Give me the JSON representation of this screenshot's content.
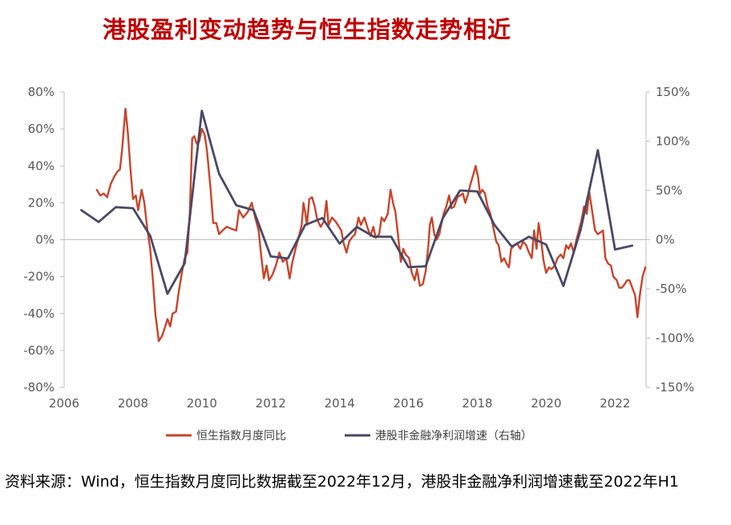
{
  "title": "港股盈利变动趋势与恒生指数走势相近",
  "source_note": "资料来源：Wind，恒生指数月度同比数据截至2022年12月，港股非金融净利润增速截至2022年H1",
  "colors": {
    "series1": "#c8442a",
    "series2": "#4a4866",
    "axis": "#bfbfbf",
    "title": "#c00000"
  },
  "chart_data": {
    "type": "line",
    "x_ticks": [
      "2006",
      "2008",
      "2010",
      "2012",
      "2014",
      "2016",
      "2018",
      "2020",
      "2022"
    ],
    "xlim": [
      2006,
      2022.9
    ],
    "y_left_ticks": [
      "80%",
      "60%",
      "40%",
      "20%",
      "0%",
      "-20%",
      "-40%",
      "-60%",
      "-80%"
    ],
    "y_left_lim": [
      -80,
      80
    ],
    "y_right_ticks": [
      "150%",
      "100%",
      "50%",
      "0%",
      "-50%",
      "-100%",
      "-150%"
    ],
    "y_right_lim": [
      -150,
      150
    ],
    "legend_position": "bottom",
    "series": [
      {
        "name": "恒生指数月度同比",
        "axis": "left",
        "color": "#c8442a",
        "points": [
          [
            2006.95,
            27
          ],
          [
            2007.05,
            24
          ],
          [
            2007.15,
            25
          ],
          [
            2007.25,
            23
          ],
          [
            2007.35,
            30
          ],
          [
            2007.45,
            34
          ],
          [
            2007.55,
            37
          ],
          [
            2007.62,
            38
          ],
          [
            2007.68,
            48
          ],
          [
            2007.78,
            71
          ],
          [
            2007.85,
            58
          ],
          [
            2007.92,
            40
          ],
          [
            2008.0,
            22
          ],
          [
            2008.08,
            24
          ],
          [
            2008.15,
            16
          ],
          [
            2008.25,
            27
          ],
          [
            2008.33,
            20
          ],
          [
            2008.42,
            5
          ],
          [
            2008.5,
            -5
          ],
          [
            2008.58,
            -22
          ],
          [
            2008.65,
            -40
          ],
          [
            2008.75,
            -55
          ],
          [
            2008.85,
            -52
          ],
          [
            2008.92,
            -48
          ],
          [
            2009.0,
            -43
          ],
          [
            2009.08,
            -47
          ],
          [
            2009.15,
            -40
          ],
          [
            2009.25,
            -39
          ],
          [
            2009.33,
            -28
          ],
          [
            2009.42,
            -18
          ],
          [
            2009.5,
            -10
          ],
          [
            2009.58,
            -7
          ],
          [
            2009.65,
            15
          ],
          [
            2009.72,
            55
          ],
          [
            2009.78,
            56
          ],
          [
            2009.85,
            52
          ],
          [
            2009.92,
            53
          ],
          [
            2010.0,
            60
          ],
          [
            2010.08,
            57
          ],
          [
            2010.15,
            48
          ],
          [
            2010.25,
            28
          ],
          [
            2010.33,
            9
          ],
          [
            2010.42,
            9
          ],
          [
            2010.5,
            3
          ],
          [
            2010.6,
            5
          ],
          [
            2010.72,
            7
          ],
          [
            2010.85,
            6
          ],
          [
            2011.0,
            5
          ],
          [
            2011.08,
            16
          ],
          [
            2011.2,
            12
          ],
          [
            2011.33,
            15
          ],
          [
            2011.45,
            20
          ],
          [
            2011.55,
            12
          ],
          [
            2011.65,
            5
          ],
          [
            2011.72,
            -8
          ],
          [
            2011.8,
            -21
          ],
          [
            2011.88,
            -14
          ],
          [
            2011.95,
            -22
          ],
          [
            2012.05,
            -19
          ],
          [
            2012.15,
            -14
          ],
          [
            2012.25,
            -7
          ],
          [
            2012.35,
            -12
          ],
          [
            2012.45,
            -10
          ],
          [
            2012.55,
            -21
          ],
          [
            2012.62,
            -13
          ],
          [
            2012.72,
            -5
          ],
          [
            2012.82,
            2
          ],
          [
            2012.9,
            8
          ],
          [
            2012.95,
            20
          ],
          [
            2013.0,
            15
          ],
          [
            2013.05,
            8
          ],
          [
            2013.12,
            22
          ],
          [
            2013.2,
            23
          ],
          [
            2013.28,
            18
          ],
          [
            2013.35,
            11
          ],
          [
            2013.45,
            7
          ],
          [
            2013.55,
            10
          ],
          [
            2013.62,
            21
          ],
          [
            2013.68,
            8
          ],
          [
            2013.78,
            12
          ],
          [
            2013.88,
            10
          ],
          [
            2013.95,
            8
          ],
          [
            2014.05,
            5
          ],
          [
            2014.12,
            -2
          ],
          [
            2014.2,
            -7
          ],
          [
            2014.28,
            -1
          ],
          [
            2014.35,
            1
          ],
          [
            2014.45,
            3
          ],
          [
            2014.55,
            12
          ],
          [
            2014.62,
            8
          ],
          [
            2014.72,
            12
          ],
          [
            2014.82,
            6
          ],
          [
            2014.9,
            2
          ],
          [
            2014.98,
            7
          ],
          [
            2015.05,
            1
          ],
          [
            2015.15,
            3
          ],
          [
            2015.22,
            12
          ],
          [
            2015.3,
            10
          ],
          [
            2015.4,
            14
          ],
          [
            2015.48,
            27
          ],
          [
            2015.55,
            20
          ],
          [
            2015.62,
            15
          ],
          [
            2015.7,
            2
          ],
          [
            2015.78,
            -12
          ],
          [
            2015.85,
            -5
          ],
          [
            2015.92,
            -8
          ],
          [
            2016.02,
            -10
          ],
          [
            2016.1,
            -18
          ],
          [
            2016.18,
            -22
          ],
          [
            2016.25,
            -16
          ],
          [
            2016.33,
            -25
          ],
          [
            2016.42,
            -24
          ],
          [
            2016.5,
            -17
          ],
          [
            2016.58,
            -3
          ],
          [
            2016.62,
            8
          ],
          [
            2016.68,
            12
          ],
          [
            2016.75,
            3
          ],
          [
            2016.82,
            0
          ],
          [
            2016.9,
            3
          ],
          [
            2016.95,
            8
          ],
          [
            2017.02,
            14
          ],
          [
            2017.1,
            18
          ],
          [
            2017.18,
            24
          ],
          [
            2017.25,
            17
          ],
          [
            2017.33,
            18
          ],
          [
            2017.42,
            23
          ],
          [
            2017.5,
            24
          ],
          [
            2017.58,
            25
          ],
          [
            2017.65,
            20
          ],
          [
            2017.72,
            24
          ],
          [
            2017.8,
            30
          ],
          [
            2017.88,
            35
          ],
          [
            2017.95,
            40
          ],
          [
            2018.02,
            34
          ],
          [
            2018.08,
            25
          ],
          [
            2018.15,
            27
          ],
          [
            2018.22,
            25
          ],
          [
            2018.3,
            18
          ],
          [
            2018.38,
            14
          ],
          [
            2018.45,
            8
          ],
          [
            2018.55,
            -1
          ],
          [
            2018.62,
            -3
          ],
          [
            2018.7,
            -12
          ],
          [
            2018.78,
            -10
          ],
          [
            2018.85,
            -13
          ],
          [
            2018.92,
            -15
          ],
          [
            2018.98,
            -5
          ],
          [
            2019.08,
            -3
          ],
          [
            2019.15,
            -2
          ],
          [
            2019.25,
            -5
          ],
          [
            2019.33,
            -1
          ],
          [
            2019.42,
            -3
          ],
          [
            2019.5,
            -7
          ],
          [
            2019.58,
            -10
          ],
          [
            2019.65,
            5
          ],
          [
            2019.72,
            -5
          ],
          [
            2019.78,
            9
          ],
          [
            2019.85,
            0
          ],
          [
            2019.92,
            -11
          ],
          [
            2020.0,
            -18
          ],
          [
            2020.08,
            -15
          ],
          [
            2020.15,
            -16
          ],
          [
            2020.25,
            -14
          ],
          [
            2020.33,
            -10
          ],
          [
            2020.42,
            -8
          ],
          [
            2020.5,
            -10
          ],
          [
            2020.58,
            -3
          ],
          [
            2020.65,
            -5
          ],
          [
            2020.72,
            -2
          ],
          [
            2020.8,
            -7
          ],
          [
            2020.88,
            0
          ],
          [
            2020.95,
            5
          ],
          [
            2021.02,
            10
          ],
          [
            2021.1,
            18
          ],
          [
            2021.18,
            14
          ],
          [
            2021.25,
            26
          ],
          [
            2021.33,
            16
          ],
          [
            2021.42,
            5
          ],
          [
            2021.5,
            3
          ],
          [
            2021.58,
            4
          ],
          [
            2021.65,
            5
          ],
          [
            2021.72,
            -10
          ],
          [
            2021.8,
            -13
          ],
          [
            2021.88,
            -14
          ],
          [
            2021.95,
            -20
          ],
          [
            2022.05,
            -22
          ],
          [
            2022.12,
            -26
          ],
          [
            2022.2,
            -26
          ],
          [
            2022.28,
            -24
          ],
          [
            2022.35,
            -22
          ],
          [
            2022.42,
            -22
          ],
          [
            2022.5,
            -26
          ],
          [
            2022.58,
            -30
          ],
          [
            2022.65,
            -42
          ],
          [
            2022.72,
            -30
          ],
          [
            2022.8,
            -20
          ],
          [
            2022.88,
            -15
          ]
        ]
      },
      {
        "name": "港股非金融净利润增速（右轴）",
        "axis": "right",
        "color": "#4a4866",
        "points": [
          [
            2006.5,
            30
          ],
          [
            2007.0,
            18
          ],
          [
            2007.5,
            33
          ],
          [
            2008.0,
            32
          ],
          [
            2008.5,
            4
          ],
          [
            2009.0,
            -55
          ],
          [
            2009.5,
            -24
          ],
          [
            2010.0,
            131
          ],
          [
            2010.5,
            67
          ],
          [
            2011.0,
            35
          ],
          [
            2011.5,
            30
          ],
          [
            2012.0,
            -17
          ],
          [
            2012.5,
            -19
          ],
          [
            2013.0,
            15
          ],
          [
            2013.5,
            22
          ],
          [
            2014.0,
            -4
          ],
          [
            2014.5,
            13
          ],
          [
            2015.0,
            3
          ],
          [
            2015.5,
            3
          ],
          [
            2016.0,
            -28
          ],
          [
            2016.5,
            -27
          ],
          [
            2017.0,
            22
          ],
          [
            2017.5,
            50
          ],
          [
            2018.0,
            49
          ],
          [
            2018.5,
            15
          ],
          [
            2019.0,
            -7
          ],
          [
            2019.5,
            3
          ],
          [
            2020.0,
            -5
          ],
          [
            2020.5,
            -47
          ],
          [
            2021.0,
            10
          ],
          [
            2021.5,
            91
          ],
          [
            2022.0,
            -10
          ],
          [
            2022.5,
            -6
          ]
        ]
      }
    ]
  }
}
